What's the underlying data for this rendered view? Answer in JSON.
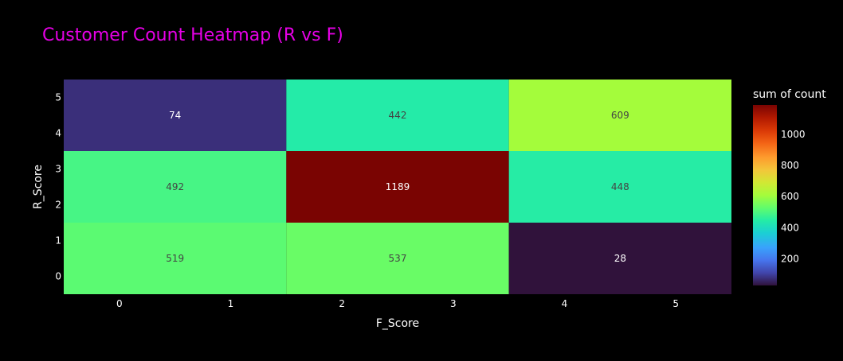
{
  "chart_data": {
    "type": "heatmap",
    "title": "Customer Count Heatmap (R vs F)",
    "xlabel": "F_Score",
    "ylabel": "R_Score",
    "xlim": [
      -0.5,
      5.5
    ],
    "ylim": [
      -0.5,
      5.5
    ],
    "x_ticks": [
      0,
      1,
      2,
      3,
      4,
      5
    ],
    "y_ticks": [
      0,
      1,
      2,
      3,
      4,
      5
    ],
    "x_bins": [
      [
        -0.5,
        1.5
      ],
      [
        1.5,
        3.5
      ],
      [
        3.5,
        5.5
      ]
    ],
    "y_bins": [
      [
        -0.5,
        1.5
      ],
      [
        1.5,
        3.5
      ],
      [
        3.5,
        5.5
      ]
    ],
    "z": [
      [
        519,
        537,
        28
      ],
      [
        492,
        1189,
        448
      ],
      [
        74,
        442,
        609
      ]
    ],
    "colorbar": {
      "title": "sum of count",
      "range": [
        28,
        1189
      ],
      "ticks": [
        200,
        400,
        600,
        800,
        1000
      ],
      "colorscale": [
        [
          0.0,
          "#30123b"
        ],
        [
          0.07,
          "#4145ab"
        ],
        [
          0.14,
          "#4675ed"
        ],
        [
          0.21,
          "#39a2fc"
        ],
        [
          0.29,
          "#1bcfd4"
        ],
        [
          0.36,
          "#24eca6"
        ],
        [
          0.43,
          "#61fc6c"
        ],
        [
          0.5,
          "#a4fc3b"
        ],
        [
          0.57,
          "#d1e834"
        ],
        [
          0.64,
          "#f3c63a"
        ],
        [
          0.71,
          "#fe9b2d"
        ],
        [
          0.79,
          "#f36315"
        ],
        [
          0.86,
          "#d93806"
        ],
        [
          0.93,
          "#b11901"
        ],
        [
          1.0,
          "#7a0402"
        ]
      ]
    },
    "grid": false,
    "colors": {
      "background": "#000000",
      "title": "#e600e6",
      "text": "#ffffff",
      "cell_text_dark": "#444444",
      "cell_text_light": "#ffffff"
    }
  }
}
